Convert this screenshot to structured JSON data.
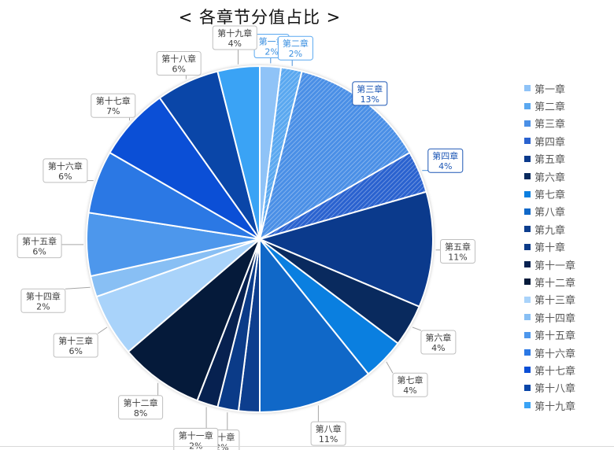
{
  "chart_data": {
    "type": "pie",
    "title": "< 各章节分值占比 >",
    "slices": [
      {
        "label": "第一章",
        "value": 2,
        "percent_label": "2%",
        "color": "#8fc3f7",
        "hatch": false
      },
      {
        "label": "第二章",
        "value": 2,
        "percent_label": "2%",
        "color": "#5aa8f0",
        "hatch": true
      },
      {
        "label": "第三章",
        "value": 13,
        "percent_label": "13%",
        "color": "#4a8fe6",
        "hatch": true
      },
      {
        "label": "第四章",
        "value": 4,
        "percent_label": "4%",
        "color": "#2a62cf",
        "hatch": true
      },
      {
        "label": "第五章",
        "value": 11,
        "percent_label": "11%",
        "color": "#0b3a8c",
        "hatch": false
      },
      {
        "label": "第六章",
        "value": 4,
        "percent_label": "4%",
        "color": "#092a5e",
        "hatch": false
      },
      {
        "label": "第七章",
        "value": 4,
        "percent_label": "4%",
        "color": "#0a7fe0",
        "hatch": false
      },
      {
        "label": "第八章",
        "value": 11,
        "percent_label": "11%",
        "color": "#1068c8",
        "hatch": false
      },
      {
        "label": "第九章",
        "value": 2,
        "percent_label": "",
        "color": "#0d3e8e",
        "hatch": false
      },
      {
        "label": "第十章",
        "value": 2,
        "percent_label": "2%",
        "color": "#0b3b88",
        "hatch": false
      },
      {
        "label": "第十一章",
        "value": 2,
        "percent_label": "2%",
        "color": "#072150",
        "hatch": false
      },
      {
        "label": "第十二章",
        "value": 8,
        "percent_label": "8%",
        "color": "#051a3a",
        "hatch": false
      },
      {
        "label": "第十三章",
        "value": 6,
        "percent_label": "6%",
        "color": "#a9d3fa",
        "hatch": false
      },
      {
        "label": "第十四章",
        "value": 2,
        "percent_label": "2%",
        "color": "#88bff4",
        "hatch": false
      },
      {
        "label": "第十五章",
        "value": 6,
        "percent_label": "6%",
        "color": "#4d97ec",
        "hatch": false
      },
      {
        "label": "第十六章",
        "value": 6,
        "percent_label": "6%",
        "color": "#2b78e4",
        "hatch": false
      },
      {
        "label": "第十七章",
        "value": 7,
        "percent_label": "7%",
        "color": "#0b4fd6",
        "hatch": false
      },
      {
        "label": "第十八章",
        "value": 6,
        "percent_label": "6%",
        "color": "#0a46a8",
        "hatch": false
      },
      {
        "label": "第十九章",
        "value": 4,
        "percent_label": "4%",
        "color": "#3aa3f5",
        "hatch": false
      }
    ],
    "legend_position": "right"
  }
}
